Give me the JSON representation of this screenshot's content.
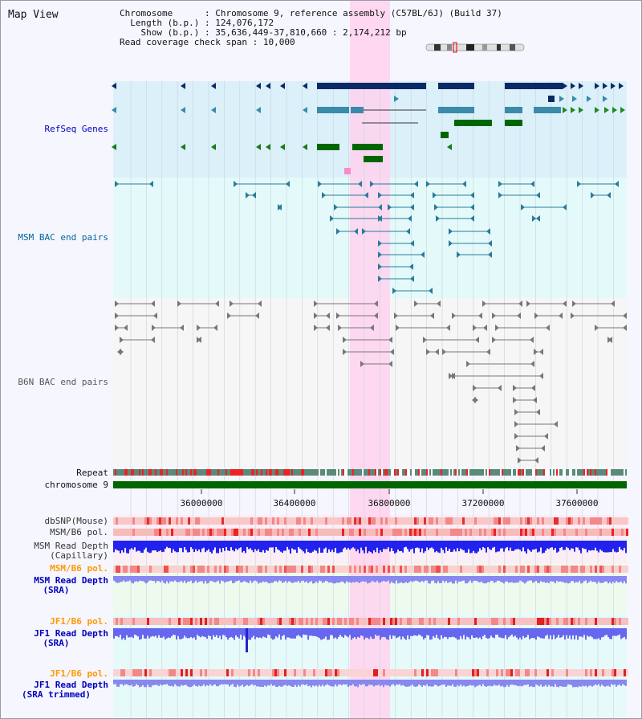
{
  "title": "Map View",
  "info": {
    "chromosome_key": "Chromosome",
    "chromosome_val": "Chromosome 9, reference assembly (C57BL/6J) (Build 37)",
    "length_key": "Length (b.p.)",
    "length_val": "124,076,172",
    "show_key": "Show (b.p.)",
    "show_val": "35,636,449-37,810,660 : 2,174,212 bp",
    "coverage_key": "Read coverage check span",
    "coverage_val": "10,000"
  },
  "tracks": {
    "refseq": "RefSeq Genes",
    "msm_bac": "MSM BAC end pairs",
    "b6n_bac": "B6N BAC end pairs",
    "repeat": "Repeat",
    "chromosome": "chromosome 9",
    "dbsnp": "dbSNP(Mouse)",
    "msm_pol": "MSM/B6 pol.",
    "msm_depth_cap_1": "MSM Read Depth",
    "msm_depth_cap_2": "(Capillary)",
    "msm_pol_sra": "MSM/B6 pol.",
    "msm_depth_sra_1": "MSM Read Depth",
    "msm_depth_sra_2": "(SRA)",
    "jf1_pol_1": "JF1/B6 pol.",
    "jf1_depth_1": "JF1 Read Depth",
    "jf1_depth_1b": "(SRA)",
    "jf1_pol_2": "JF1/B6 pol.",
    "jf1_depth_2": "JF1 Read Depth",
    "jf1_depth_2b": "(SRA trimmed)"
  },
  "axis_ticks": [
    "36000000",
    "36400000",
    "36800000",
    "37200000",
    "37600000"
  ],
  "colors": {
    "refseq_label": "#0000bb",
    "msm_label": "#006699",
    "b6n_label": "#555555",
    "pol_orange": "#ff9900",
    "highlight": "#ffccee"
  }
}
